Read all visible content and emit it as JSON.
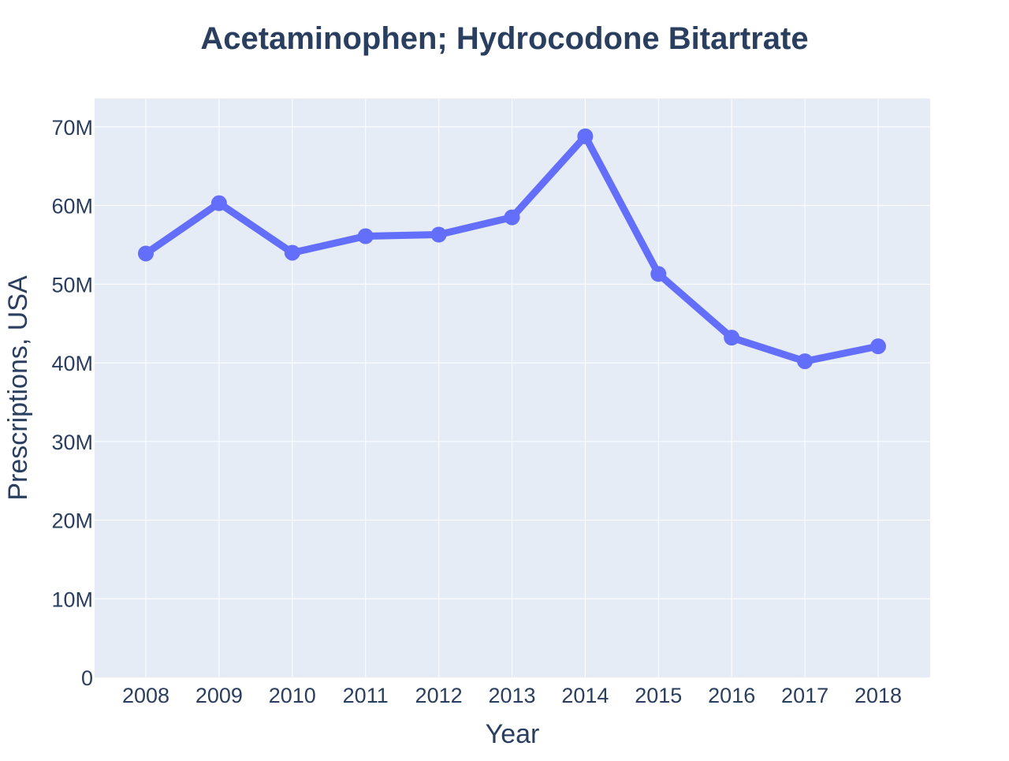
{
  "chart_data": {
    "type": "line",
    "title": "Acetaminophen; Hydrocodone Bitartrate",
    "xlabel": "Year",
    "ylabel": "Prescriptions, USA",
    "x": [
      "2008",
      "2009",
      "2010",
      "2011",
      "2012",
      "2013",
      "2014",
      "2015",
      "2016",
      "2017",
      "2018"
    ],
    "series": [
      {
        "values": [
          53900000,
          60300000,
          54000000,
          56100000,
          56300000,
          58500000,
          68800000,
          51300000,
          43200000,
          40200000,
          42100000
        ]
      }
    ],
    "ylim": [
      0,
      73600000
    ],
    "y_ticks": [
      {
        "value": 0,
        "label": "0"
      },
      {
        "value": 10000000,
        "label": "10M"
      },
      {
        "value": 20000000,
        "label": "20M"
      },
      {
        "value": 30000000,
        "label": "30M"
      },
      {
        "value": 40000000,
        "label": "40M"
      },
      {
        "value": 50000000,
        "label": "50M"
      },
      {
        "value": 60000000,
        "label": "60M"
      },
      {
        "value": 70000000,
        "label": "70M"
      }
    ],
    "grid": true,
    "colors": {
      "line": "#636efa",
      "plot_background": "#e5ecf6",
      "grid": "#ffffff",
      "text": "#2a3f5f"
    }
  }
}
